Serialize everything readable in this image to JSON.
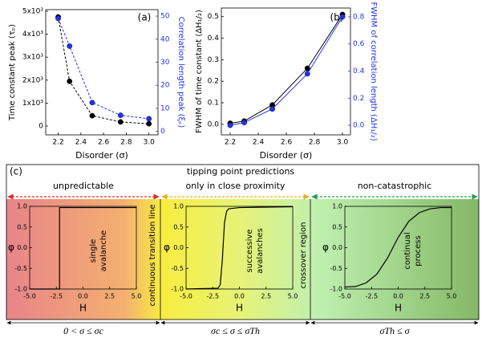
{
  "chart_data": [
    {
      "type": "line",
      "label": "(a)",
      "xlabel": "Disorder (σ)",
      "ylabel": "Time constant peak (τₚ)",
      "y2label": "Correlation length peak (ξₚ)",
      "x": [
        2.2,
        2.3,
        2.5,
        2.75,
        3.0
      ],
      "series": [
        {
          "color": "#000000",
          "line_style": "dashed",
          "markers": true,
          "values": [
            4750,
            1950,
            450,
            180,
            100
          ]
        },
        {
          "color": "#2233ee",
          "line_style": "dashed",
          "markers": true,
          "axis": "y2",
          "values": [
            49,
            37,
            12.5,
            7,
            5.5
          ]
        }
      ],
      "xlim": [
        2.09,
        3.08
      ],
      "xticks": [
        2.2,
        2.4,
        2.6,
        2.8,
        {
          "value": 3.0,
          "label": "3.0"
        }
      ],
      "ylim": [
        -385,
        5070
      ],
      "yticks": [
        0,
        {
          "value": 1000,
          "label": "1x10³"
        },
        {
          "value": 2000,
          "label": "2x10³"
        },
        {
          "value": 3000,
          "label": "3x10³"
        },
        {
          "value": 4000,
          "label": "4x10³"
        },
        {
          "value": 5000,
          "label": "5x10³"
        }
      ],
      "y2lim": [
        -1.5,
        52.8
      ],
      "y2ticks": [
        0,
        10,
        20,
        30,
        40,
        50
      ],
      "y2color": "#2233ee"
    },
    {
      "type": "line",
      "label": "(b)",
      "xlabel": "Disorder (σ)",
      "ylabel": "FWHM of time constant (ΔH₁/₂)",
      "y2label": "FWHM of correlation length (ΔH₁/₂)",
      "x": [
        2.2,
        2.3,
        2.5,
        2.75,
        3.0
      ],
      "series": [
        {
          "color": "#000000",
          "line_style": "solid",
          "markers": true,
          "values": [
            0.005,
            0.015,
            0.09,
            0.26,
            0.51
          ]
        },
        {
          "color": "#2233ee",
          "line_style": "solid",
          "markers": true,
          "axis": "y2",
          "values": [
            0.0,
            0.02,
            0.12,
            0.38,
            0.8
          ]
        }
      ],
      "xlim": [
        2.137,
        3.057
      ],
      "xticks": [
        2.2,
        2.4,
        2.6,
        2.8,
        {
          "value": 3.0,
          "label": "3.0"
        }
      ],
      "ylim": [
        -0.049,
        0.54
      ],
      "yticks": [
        {
          "value": 0,
          "label": "0.0"
        },
        0.1,
        0.2,
        0.3,
        0.4,
        0.5
      ],
      "y2lim": [
        -0.071,
        0.865
      ],
      "y2ticks": [
        {
          "value": 0,
          "label": "0.0"
        },
        0.2,
        0.4,
        0.6,
        0.8
      ],
      "y2color": "#2233ee"
    },
    {
      "type": "line",
      "xlabel": "H",
      "ylabel": "φ",
      "annotation": [
        "single",
        "avalanche"
      ],
      "x": [
        -5,
        -2.2,
        -2.2,
        5
      ],
      "series": [
        {
          "color": "#000000",
          "line_style": "solid",
          "markers": false,
          "values": [
            -1,
            -1,
            0.97,
            0.97
          ]
        }
      ],
      "xlim": [
        -5,
        5
      ],
      "xticks": [
        {
          "value": -5,
          "label": "-5.0"
        },
        {
          "value": -2.5,
          "label": "-2.5"
        },
        {
          "value": 0,
          "label": "0.0"
        },
        {
          "value": 2.5,
          "label": "2.5"
        },
        {
          "value": 5,
          "label": "5.0"
        }
      ],
      "ylim": [
        -1,
        1
      ],
      "yticks": [
        {
          "value": -1,
          "label": "-1.0"
        },
        {
          "value": -0.5,
          "label": "-0.5"
        },
        {
          "value": 0,
          "label": "0.0"
        },
        {
          "value": 0.5,
          "label": "0.5"
        },
        {
          "value": 1,
          "label": "1.0"
        }
      ]
    },
    {
      "type": "line",
      "xlabel": "H",
      "ylabel": "φ",
      "annotation": [
        "successive",
        "avalanches"
      ],
      "x": [
        -5,
        -2,
        -1.8,
        -1.6,
        -1.4,
        -1.2,
        -1,
        0,
        2.5,
        5
      ],
      "series": [
        {
          "color": "#000000",
          "line_style": "solid",
          "markers": false,
          "values": [
            -1,
            -0.98,
            -0.9,
            -0.3,
            0.6,
            0.88,
            0.94,
            0.97,
            0.98,
            0.99
          ]
        }
      ],
      "xlim": [
        -5,
        5
      ],
      "xticks": [
        {
          "value": -5,
          "label": "-5.0"
        },
        {
          "value": -2.5,
          "label": "-2.5"
        },
        {
          "value": 0,
          "label": "0.0"
        },
        {
          "value": 2.5,
          "label": "2.5"
        },
        {
          "value": 5,
          "label": "5.0"
        }
      ],
      "ylim": [
        -1,
        1
      ],
      "yticks": [
        {
          "value": -1,
          "label": "-1.0"
        },
        {
          "value": -0.5,
          "label": "-0.5"
        },
        {
          "value": 0,
          "label": "0.0"
        },
        {
          "value": 0.5,
          "label": "0.5"
        },
        {
          "value": 1,
          "label": "1.0"
        }
      ]
    },
    {
      "type": "line",
      "xlabel": "H",
      "ylabel": "φ",
      "annotation": [
        "continual",
        "process"
      ],
      "x": [
        -5,
        -4,
        -3,
        -2,
        -1,
        0,
        1,
        2,
        3,
        4,
        5
      ],
      "series": [
        {
          "color": "#000000",
          "line_style": "solid",
          "markers": false,
          "values": [
            -0.95,
            -0.94,
            -0.85,
            -0.64,
            -0.25,
            0.25,
            0.64,
            0.85,
            0.94,
            0.97,
            0.97
          ]
        }
      ],
      "xlim": [
        -5,
        5
      ],
      "xticks": [
        {
          "value": -5,
          "label": "-5.0"
        },
        {
          "value": -2.5,
          "label": "-2.5"
        },
        {
          "value": 0,
          "label": "0.0"
        },
        {
          "value": 2.5,
          "label": "2.5"
        },
        {
          "value": 5,
          "label": "5.0"
        }
      ],
      "ylim": [
        -1,
        1
      ],
      "yticks": [
        {
          "value": -1,
          "label": "-1.0"
        },
        {
          "value": -0.5,
          "label": "-0.5"
        },
        {
          "value": 0,
          "label": "0.0"
        },
        {
          "value": 0.5,
          "label": "0.5"
        },
        {
          "value": 1,
          "label": "1.0"
        }
      ]
    }
  ],
  "panel_c": {
    "label": "(c)",
    "title": "tipping point predictions",
    "regions": [
      {
        "heading": "unpredictable",
        "color": "#d83030",
        "condition": "0 < σ ≤ σc"
      },
      {
        "heading": "only in close proximity",
        "color": "#e8b020",
        "condition": "σc ≤ σ ≤ σTh"
      },
      {
        "heading": "non-catastrophic",
        "color": "#2e9a5a",
        "condition": "σTh ≤ σ"
      }
    ],
    "boundaries": [
      "continuous transition line",
      "crossover region"
    ]
  }
}
